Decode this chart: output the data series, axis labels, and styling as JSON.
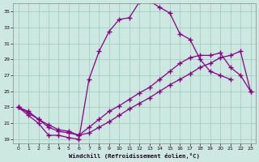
{
  "bg_color": "#cce8e0",
  "line_color": "#880088",
  "grid_color": "#99ccbb",
  "xlabel": "Windchill (Refroidissement éolien,°C)",
  "xlim_min": -0.5,
  "xlim_max": 23.5,
  "ylim_min": 18.5,
  "ylim_max": 36.0,
  "yticks": [
    19,
    21,
    23,
    25,
    27,
    29,
    31,
    33,
    35
  ],
  "xticks": [
    0,
    1,
    2,
    3,
    4,
    5,
    6,
    7,
    8,
    9,
    10,
    11,
    12,
    13,
    14,
    15,
    16,
    17,
    18,
    19,
    20,
    21,
    22,
    23
  ],
  "curve1_x": [
    0,
    1,
    2,
    3,
    4,
    5,
    6,
    7,
    8,
    9,
    10,
    11,
    12,
    13,
    14,
    15,
    16,
    17,
    18,
    19,
    20,
    21
  ],
  "curve1_y": [
    23,
    22,
    21,
    19.5,
    19.5,
    19.2,
    19.0,
    26.5,
    30.0,
    32.5,
    34.0,
    34.2,
    36.2,
    36.3,
    35.5,
    34.8,
    32.2,
    31.5,
    29.0,
    27.5,
    27.0,
    26.5
  ],
  "curve2_x": [
    0,
    1,
    2,
    3,
    4,
    5,
    6,
    7,
    8,
    9,
    10,
    11,
    12,
    13,
    14,
    15,
    16,
    17,
    18,
    19,
    20,
    21,
    22,
    23
  ],
  "curve2_y": [
    23,
    22.5,
    21.5,
    20.8,
    20.2,
    20.0,
    19.5,
    20.5,
    21.5,
    22.5,
    23.2,
    24.0,
    24.8,
    25.5,
    26.5,
    27.5,
    28.5,
    29.2,
    29.5,
    29.5,
    29.8,
    28.0,
    27.0,
    25.0
  ],
  "curve3_x": [
    0,
    1,
    2,
    3,
    4,
    5,
    6,
    7,
    8,
    9,
    10,
    11,
    12,
    13,
    14,
    15,
    16,
    17,
    18,
    19,
    20,
    21,
    22,
    23
  ],
  "curve3_y": [
    23,
    22.3,
    21.5,
    20.5,
    20.0,
    19.8,
    19.5,
    19.8,
    20.5,
    21.2,
    22.0,
    22.8,
    23.5,
    24.2,
    25.0,
    25.8,
    26.5,
    27.2,
    28.0,
    28.5,
    29.2,
    29.5,
    30.0,
    25.0
  ]
}
